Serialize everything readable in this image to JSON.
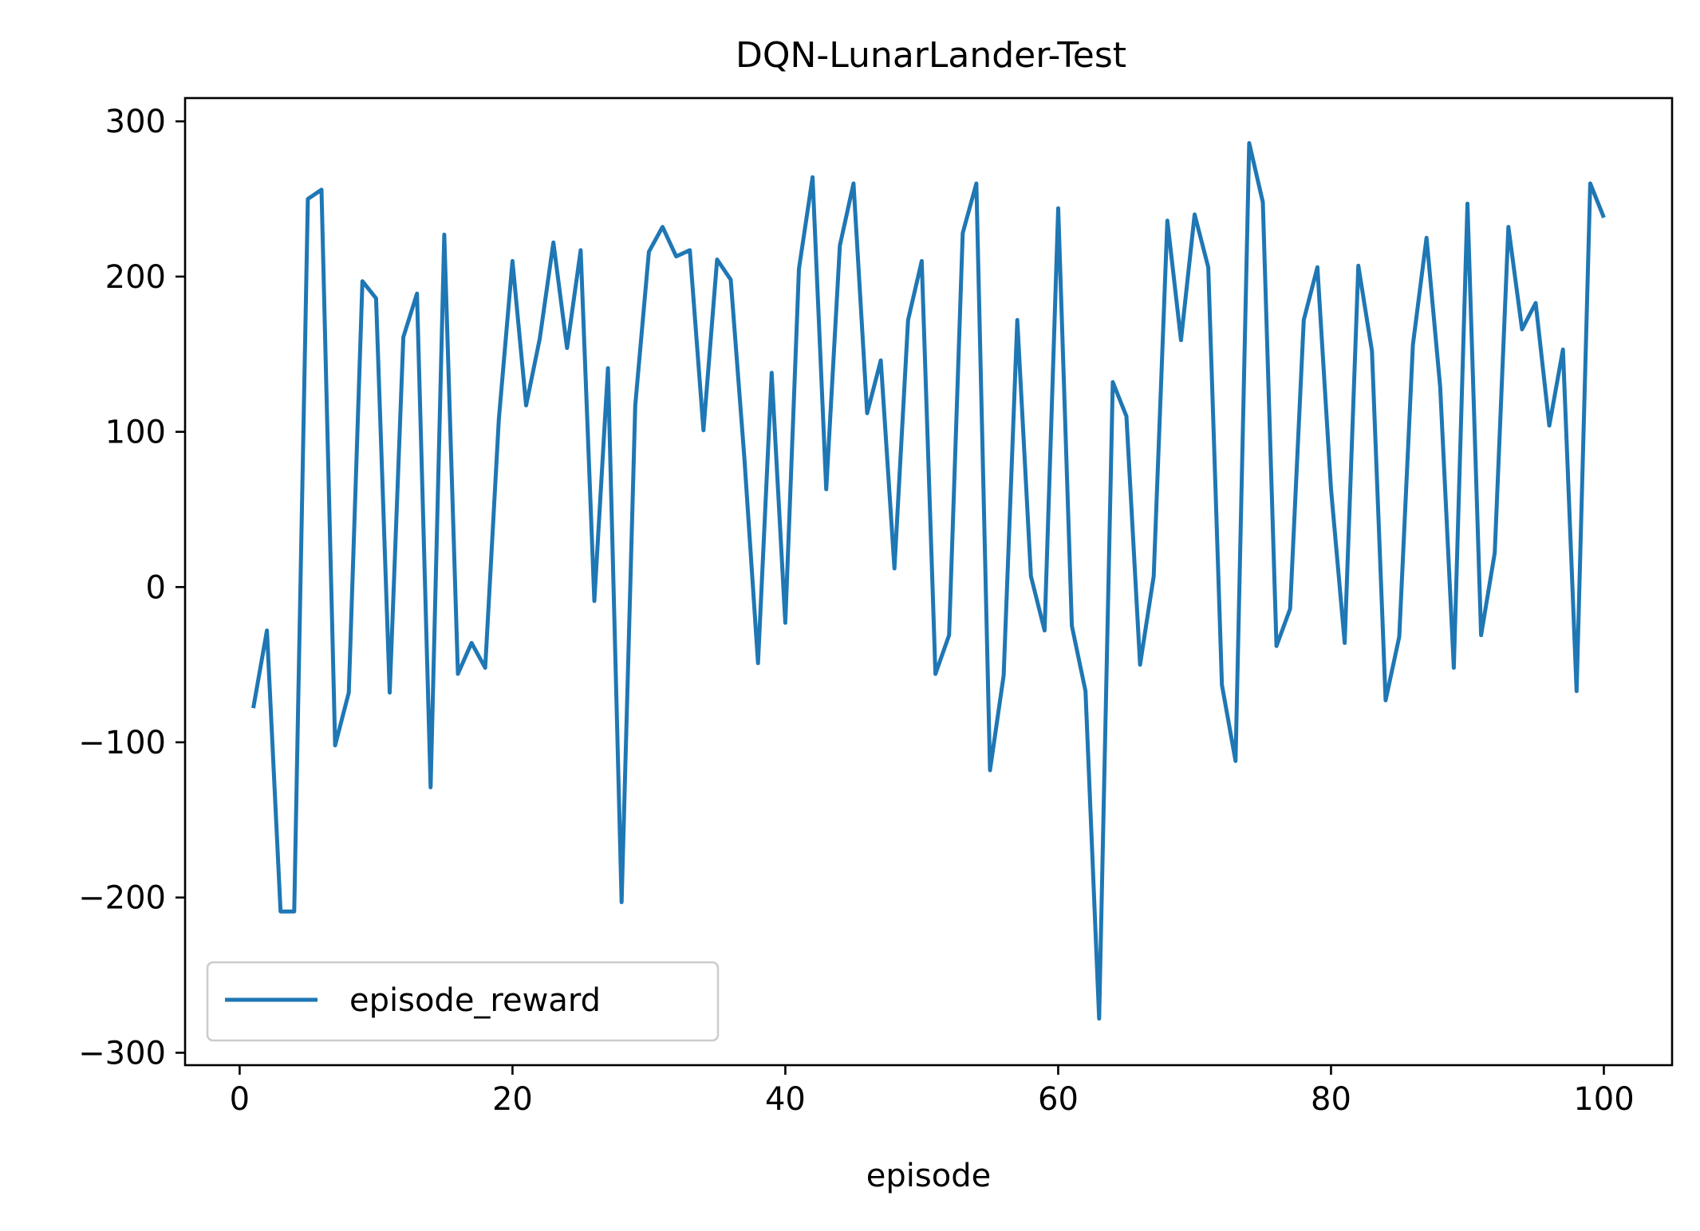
{
  "chart_data": {
    "type": "line",
    "title": "DQN-LunarLander-Test",
    "xlabel": "episode",
    "ylabel": "",
    "xlim": [
      -4,
      105
    ],
    "ylim": [
      -308,
      315
    ],
    "xticks": [
      0,
      20,
      40,
      60,
      80,
      100
    ],
    "yticks": [
      300,
      200,
      100,
      0,
      -100,
      -200,
      -300
    ],
    "xtick_labels": [
      "0",
      "20",
      "40",
      "60",
      "80",
      "100"
    ],
    "ytick_labels": [
      "300",
      "200",
      "100",
      "0",
      "−100",
      "−200",
      "−300"
    ],
    "grid": false,
    "legend": {
      "position": "lower-left",
      "entries": [
        "episode_reward"
      ]
    },
    "series": [
      {
        "name": "episode_reward",
        "color": "#1f77b4",
        "x": [
          1,
          2,
          3,
          4,
          5,
          6,
          7,
          8,
          9,
          10,
          11,
          12,
          13,
          14,
          15,
          16,
          17,
          18,
          19,
          20,
          21,
          22,
          23,
          24,
          25,
          26,
          27,
          28,
          29,
          30,
          31,
          32,
          33,
          34,
          35,
          36,
          37,
          38,
          39,
          40,
          41,
          42,
          43,
          44,
          45,
          46,
          47,
          48,
          49,
          50,
          51,
          52,
          53,
          54,
          55,
          56,
          57,
          58,
          59,
          60,
          61,
          62,
          63,
          64,
          65,
          66,
          67,
          68,
          69,
          70,
          71,
          72,
          73,
          74,
          75,
          76,
          77,
          78,
          79,
          80,
          81,
          82,
          83,
          84,
          85,
          86,
          87,
          88,
          89,
          90,
          91,
          92,
          93,
          94,
          95,
          96,
          97,
          98,
          99,
          100
        ],
        "values": [
          -78,
          -28,
          -209,
          -209,
          250,
          256,
          -102,
          -68,
          197,
          186,
          -68,
          161,
          189,
          -129,
          227,
          -56,
          -36,
          -52,
          108,
          210,
          117,
          160,
          222,
          154,
          217,
          -9,
          141,
          -203,
          117,
          216,
          232,
          213,
          217,
          101,
          211,
          198,
          83,
          -49,
          138,
          -23,
          205,
          264,
          63,
          220,
          260,
          112,
          146,
          12,
          172,
          210,
          -56,
          -31,
          228,
          260,
          -118,
          -57,
          172,
          7,
          -28,
          244,
          -25,
          -67,
          -278,
          132,
          110,
          -50,
          7,
          236,
          159,
          240,
          206,
          -63,
          -112,
          286,
          248,
          -38,
          -14,
          172,
          206,
          63,
          -36,
          207,
          152,
          -73,
          -32,
          156,
          225,
          129,
          -52,
          247,
          -31,
          22,
          232,
          166,
          183,
          104,
          153,
          -67,
          260,
          238
        ]
      }
    ]
  }
}
